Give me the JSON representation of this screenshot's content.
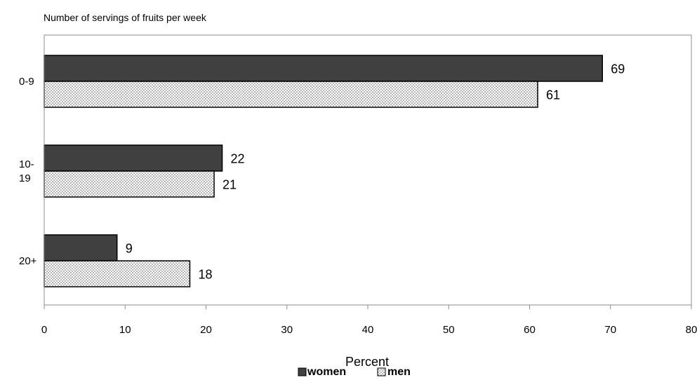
{
  "chart_data": {
    "type": "bar",
    "orientation": "horizontal",
    "title": "Number of servings of fruits per week",
    "categories": [
      "0-9",
      "10-19",
      "20+"
    ],
    "category_label_lines": [
      [
        "0-9"
      ],
      [
        "10-",
        "19"
      ],
      [
        "20+"
      ]
    ],
    "series": [
      {
        "name": "women",
        "values": [
          69,
          22,
          9
        ],
        "color": "#404040",
        "pattern": "solid"
      },
      {
        "name": "men",
        "values": [
          61,
          21,
          18
        ],
        "color": "#ffffff",
        "pattern": "dotted"
      }
    ],
    "xlabel": "Percent",
    "ylabel": "",
    "xlim": [
      0,
      80
    ],
    "x_ticks": [
      0,
      10,
      20,
      30,
      40,
      50,
      60,
      70,
      80
    ],
    "grid": false,
    "legend": {
      "position": "bottom",
      "items": [
        "women",
        "men"
      ]
    },
    "data_labels": true
  }
}
